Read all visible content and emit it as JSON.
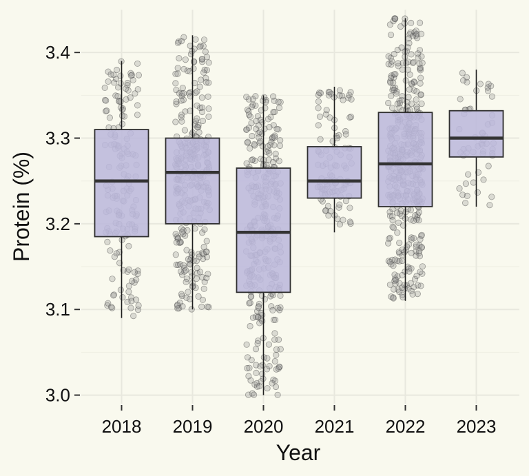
{
  "chart_data": {
    "type": "boxplot",
    "title": "",
    "xlabel": "Year",
    "ylabel": "Protein (%)",
    "categories": [
      "2018",
      "2019",
      "2020",
      "2021",
      "2022",
      "2023"
    ],
    "ylim": [
      2.99,
      3.45
    ],
    "yticks": [
      "3.0",
      "3.1",
      "3.2",
      "3.3",
      "3.4"
    ],
    "grid": true,
    "legend": "none",
    "box_color": "#bcb8dc",
    "box_edge_color": "#2f2f2f",
    "point_color": "#8c8c8c",
    "boxes": [
      {
        "category": "2018",
        "whisker_low": 3.09,
        "q1": 3.185,
        "median": 3.25,
        "q3": 3.31,
        "whisker_high": 3.39,
        "points": 160
      },
      {
        "category": "2019",
        "whisker_low": 3.1,
        "q1": 3.2,
        "median": 3.26,
        "q3": 3.3,
        "whisker_high": 3.42,
        "points": 320
      },
      {
        "category": "2020",
        "whisker_low": 3.0,
        "q1": 3.12,
        "median": 3.19,
        "q3": 3.265,
        "whisker_high": 3.35,
        "points": 320
      },
      {
        "category": "2021",
        "whisker_low": 3.19,
        "q1": 3.23,
        "median": 3.25,
        "q3": 3.29,
        "whisker_high": 3.36,
        "points": 110
      },
      {
        "category": "2022",
        "whisker_low": 3.11,
        "q1": 3.22,
        "median": 3.27,
        "q3": 3.33,
        "whisker_high": 3.44,
        "points": 420
      },
      {
        "category": "2023",
        "whisker_low": 3.22,
        "q1": 3.278,
        "median": 3.3,
        "q3": 3.332,
        "whisker_high": 3.38,
        "points": 55
      }
    ]
  }
}
